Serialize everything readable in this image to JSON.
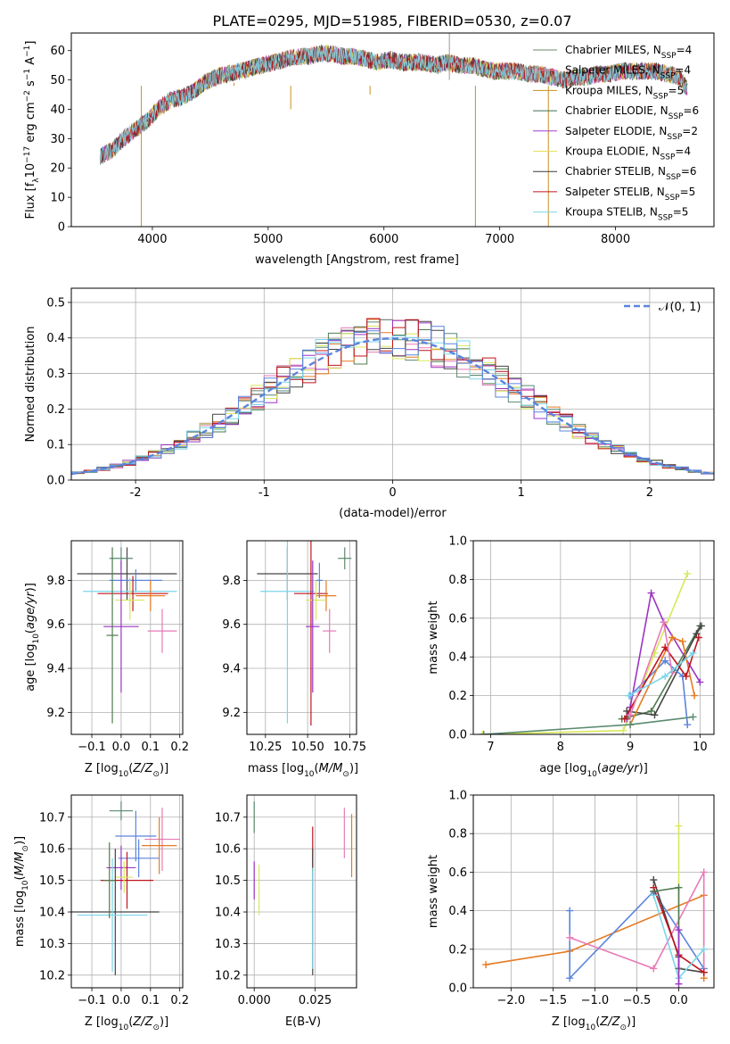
{
  "figure": {
    "title": "PLATE=0295, MJD=51985, FIBERID=0530, z=0.07"
  },
  "model_colors": [
    "#6a8a6a",
    "#e07ab8",
    "#c8901e",
    "#3f6f55",
    "#a43ad0",
    "#e8e05a",
    "#3a3a3a",
    "#c0141e",
    "#7fd6e8"
  ],
  "series_colors": [
    "#4f7b4f",
    "#e77ab8",
    "#e57b22",
    "#5a8a70",
    "#9b34c4",
    "#d8e85a",
    "#444444",
    "#c0141e",
    "#7ad6ea",
    "#5b84dd"
  ],
  "chart_data": [
    {
      "id": "spectrum",
      "type": "line",
      "title": "PLATE=0295, MJD=51985, FIBERID=0530, z=0.07",
      "xlabel": "wavelength [Angstrom, rest frame]",
      "ylabel": "Flux [f_λ10^-17 erg cm^-2 s^-1 A^-1]",
      "xlim": [
        3300,
        8850
      ],
      "ylim": [
        0,
        66
      ],
      "xticks": [
        4000,
        5000,
        6000,
        7000,
        8000
      ],
      "yticks": [
        0,
        10,
        20,
        30,
        40,
        50,
        60
      ],
      "grid": false,
      "legend_position": "top-right",
      "legend": [
        "Chabrier MILES, N_SSP=4",
        "Salpeter MILES, N_SSP=4",
        "Kroupa MILES, N_SSP=5",
        "Chabrier ELODIE, N_SSP=6",
        "Salpeter ELODIE, N_SSP=2",
        "Kroupa ELODIE, N_SSP=4",
        "Chabrier STELIB, N_SSP=6",
        "Salpeter STELIB, N_SSP=5",
        "Kroupa STELIB, N_SSP=5"
      ],
      "x": [
        3550,
        3650,
        3750,
        3850,
        3950,
        4050,
        4150,
        4250,
        4350,
        4450,
        4550,
        4650,
        4750,
        4850,
        4950,
        5050,
        5150,
        5250,
        5350,
        5450,
        5550,
        5650,
        5750,
        5850,
        5950,
        6050,
        6150,
        6250,
        6350,
        6450,
        6550,
        6650,
        6750,
        6850,
        6950,
        7050,
        7150,
        7250,
        7350,
        7450,
        7550,
        7650,
        7750,
        7850,
        7950,
        8050,
        8150,
        8250,
        8350,
        8450,
        8550,
        8650
      ],
      "y": [
        24,
        26,
        30,
        33,
        36,
        40,
        43,
        44,
        46,
        49,
        51,
        52,
        53,
        54,
        55,
        56,
        57,
        58,
        58,
        59,
        59,
        58,
        58,
        57,
        56,
        57,
        56,
        56,
        56,
        55,
        56,
        55,
        55,
        54,
        53,
        53,
        53,
        52,
        52,
        51,
        50,
        51,
        51,
        52,
        52,
        53,
        53,
        53,
        53,
        52,
        51,
        45
      ]
    },
    {
      "id": "residuals",
      "type": "histogram",
      "xlabel": "(data-model)/error",
      "ylabel": "Normed distribution",
      "xlim": [
        -2.5,
        2.5
      ],
      "ylim": [
        0,
        0.54
      ],
      "xticks": [
        -2,
        -1,
        0,
        1,
        2
      ],
      "yticks": [
        0.0,
        0.1,
        0.2,
        0.3,
        0.4,
        0.5
      ],
      "grid": true,
      "legend_position": "top-right",
      "legend": [
        "N(0,1)"
      ],
      "bin_width": 0.1,
      "bin_start": -2.5,
      "gaussian": {
        "mean": 0,
        "sigma": 1
      }
    },
    {
      "id": "age_vs_Z",
      "type": "errorbar",
      "xlabel": "Z [log10(Z/Z⊙)]",
      "ylabel": "age  [log10(age/yr)]",
      "xlim": [
        -0.17,
        0.21
      ],
      "ylim": [
        9.1,
        9.98
      ],
      "xticks": [
        -0.1,
        0.0,
        0.1,
        0.2
      ],
      "xticklabels": [
        "−0.1",
        "0.0",
        "0.1",
        "0.2"
      ],
      "yticks": [
        9.2,
        9.4,
        9.6,
        9.8
      ],
      "grid": true,
      "points": [
        {
          "x": 0.02,
          "y": 9.83,
          "xerr": 0.17,
          "yerr": 0.12,
          "c": 6
        },
        {
          "x": 0.0,
          "y": 9.9,
          "xerr": 0.04,
          "yerr": 0.05,
          "c": 3
        },
        {
          "x": 0.05,
          "y": 9.8,
          "xerr": 0.09,
          "yerr": 0.05,
          "c": 9
        },
        {
          "x": 0.03,
          "y": 9.75,
          "xerr": 0.16,
          "yerr": 0.06,
          "c": 8
        },
        {
          "x": 0.04,
          "y": 9.74,
          "xerr": 0.12,
          "yerr": 0.08,
          "c": 7
        },
        {
          "x": 0.1,
          "y": 9.73,
          "xerr": 0.05,
          "yerr": 0.07,
          "c": 2
        },
        {
          "x": 0.03,
          "y": 9.71,
          "xerr": 0.05,
          "yerr": 0.09,
          "c": 5
        },
        {
          "x": 0.0,
          "y": 9.59,
          "xerr": 0.06,
          "yerr": 0.3,
          "c": 4
        },
        {
          "x": 0.14,
          "y": 9.57,
          "xerr": 0.05,
          "yerr": 0.1,
          "c": 1
        },
        {
          "x": -0.03,
          "y": 9.55,
          "xerr": 0.02,
          "yerr": 0.4,
          "c": 0
        }
      ]
    },
    {
      "id": "age_vs_mass",
      "type": "errorbar",
      "xlabel": "mass [log10(M/M⊙)]",
      "ylabel": "",
      "xlim": [
        10.14,
        10.79
      ],
      "ylim": [
        9.1,
        9.98
      ],
      "xticks": [
        10.25,
        10.5,
        10.75
      ],
      "xticklabels": [
        "10.25",
        "10.50",
        "10.75"
      ],
      "yticks": [
        9.2,
        9.4,
        9.6,
        9.8
      ],
      "grid": true,
      "points": [
        {
          "x": 10.38,
          "y": 9.83,
          "xerr": 0.18,
          "yerr": 0.12,
          "c": 6
        },
        {
          "x": 10.72,
          "y": 9.9,
          "xerr": 0.04,
          "yerr": 0.05,
          "c": 3
        },
        {
          "x": 10.38,
          "y": 9.75,
          "xerr": 0.16,
          "yerr": 0.6,
          "c": 8
        },
        {
          "x": 10.52,
          "y": 9.74,
          "xerr": 0.1,
          "yerr": 0.6,
          "c": 7
        },
        {
          "x": 10.61,
          "y": 9.73,
          "xerr": 0.06,
          "yerr": 0.07,
          "c": 2
        },
        {
          "x": 10.55,
          "y": 9.71,
          "xerr": 0.06,
          "yerr": 0.09,
          "c": 5
        },
        {
          "x": 10.53,
          "y": 9.59,
          "xerr": 0.04,
          "yerr": 0.3,
          "c": 4
        },
        {
          "x": 10.63,
          "y": 9.57,
          "xerr": 0.04,
          "yerr": 0.1,
          "c": 1
        },
        {
          "x": 10.57,
          "y": 9.8,
          "xerr": 0.02,
          "yerr": 0.08,
          "c": 9
        }
      ]
    },
    {
      "id": "weight_vs_age",
      "type": "line",
      "xlabel": "age  [log10(age/yr)]",
      "ylabel": "mass weight",
      "xlim": [
        6.75,
        10.2
      ],
      "ylim": [
        0,
        1.0
      ],
      "xticks": [
        7,
        8,
        9,
        10
      ],
      "yticks": [
        0.0,
        0.2,
        0.4,
        0.6,
        0.8,
        1.0
      ],
      "grid": true,
      "series": [
        {
          "c": 5,
          "x": [
            6.88,
            8.9,
            9.0,
            9.35,
            9.82
          ],
          "y": [
            0.0,
            0.02,
            0.1,
            0.42,
            0.83
          ]
        },
        {
          "c": 4,
          "x": [
            8.95,
            9.0,
            9.3,
            9.48,
            10.0
          ],
          "y": [
            0.08,
            0.14,
            0.73,
            0.58,
            0.27
          ]
        },
        {
          "c": 0,
          "x": [
            8.88,
            9.3,
            10.0
          ],
          "y": [
            0.08,
            0.12,
            0.56
          ]
        },
        {
          "c": 6,
          "x": [
            8.95,
            9.35,
            9.95,
            10.02
          ],
          "y": [
            0.12,
            0.1,
            0.52,
            0.56
          ]
        },
        {
          "c": 9,
          "x": [
            9.0,
            9.5,
            9.75,
            9.82
          ],
          "y": [
            0.2,
            0.38,
            0.3,
            0.05
          ]
        },
        {
          "c": 2,
          "x": [
            9.0,
            9.6,
            9.75,
            9.92
          ],
          "y": [
            0.05,
            0.5,
            0.48,
            0.2
          ]
        },
        {
          "c": 7,
          "x": [
            8.92,
            9.5,
            9.8,
            9.98
          ],
          "y": [
            0.08,
            0.45,
            0.3,
            0.5
          ]
        },
        {
          "c": 1,
          "x": [
            9.0,
            9.48,
            9.6
          ],
          "y": [
            0.1,
            0.58,
            0.32
          ]
        },
        {
          "c": 8,
          "x": [
            8.98,
            9.5,
            9.9
          ],
          "y": [
            0.2,
            0.3,
            0.42
          ]
        },
        {
          "c": 3,
          "x": [
            6.9,
            9.0,
            9.9
          ],
          "y": [
            0.0,
            0.05,
            0.09
          ]
        }
      ]
    },
    {
      "id": "mass_vs_Z",
      "type": "errorbar",
      "xlabel": "Z [log10(Z/Z⊙)]",
      "ylabel": "mass [log10(M/M⊙)]",
      "xlim": [
        -0.17,
        0.21
      ],
      "ylim": [
        10.16,
        10.77
      ],
      "xticks": [
        -0.1,
        0.0,
        0.1,
        0.2
      ],
      "xticklabels": [
        "−0.1",
        "0.0",
        "0.1",
        "0.2"
      ],
      "yticks": [
        10.2,
        10.3,
        10.4,
        10.5,
        10.6,
        10.7
      ],
      "grid": true,
      "points": [
        {
          "x": 0.0,
          "y": 10.72,
          "xerr": 0.04,
          "yerr": 0.03,
          "c": 3
        },
        {
          "x": 0.05,
          "y": 10.64,
          "xerr": 0.07,
          "yerr": 0.08,
          "c": 9
        },
        {
          "x": 0.14,
          "y": 10.63,
          "xerr": 0.06,
          "yerr": 0.1,
          "c": 1
        },
        {
          "x": 0.13,
          "y": 10.61,
          "xerr": 0.06,
          "yerr": 0.09,
          "c": 2
        },
        {
          "x": 0.06,
          "y": 10.57,
          "xerr": 0.07,
          "yerr": 0.06,
          "c": 9
        },
        {
          "x": 0.0,
          "y": 10.54,
          "xerr": 0.05,
          "yerr": 0.07,
          "c": 4
        },
        {
          "x": 0.02,
          "y": 10.5,
          "xerr": 0.09,
          "yerr": 0.09,
          "c": 7
        },
        {
          "x": 0.01,
          "y": 10.51,
          "xerr": 0.03,
          "yerr": 0.05,
          "c": 5
        },
        {
          "x": -0.02,
          "y": 10.4,
          "xerr": 0.15,
          "yerr": 0.2,
          "c": 6
        },
        {
          "x": -0.03,
          "y": 10.39,
          "xerr": 0.12,
          "yerr": 0.18,
          "c": 8
        },
        {
          "x": -0.04,
          "y": 10.5,
          "xerr": 0.02,
          "yerr": 0.12,
          "c": 0
        }
      ]
    },
    {
      "id": "mass_vs_ebv",
      "type": "errorbar",
      "xlabel": "E(B-V)",
      "ylabel": "",
      "xlim": [
        -0.003,
        0.042
      ],
      "ylim": [
        10.16,
        10.77
      ],
      "xticks": [
        0.0,
        0.025
      ],
      "xticklabels": [
        "0.000",
        "0.025"
      ],
      "yticks": [
        10.2,
        10.3,
        10.4,
        10.5,
        10.6,
        10.7
      ],
      "grid": true,
      "points": [
        {
          "x": 0.0,
          "y": 10.7,
          "xerr": 0,
          "yerr": 0.05,
          "c": 3
        },
        {
          "x": 0.0,
          "y": 10.5,
          "xerr": 0,
          "yerr": 0.06,
          "c": 4
        },
        {
          "x": 0.002,
          "y": 10.47,
          "xerr": 0,
          "yerr": 0.08,
          "c": 5
        },
        {
          "x": 0.024,
          "y": 10.6,
          "xerr": 0,
          "yerr": 0.07,
          "c": 7
        },
        {
          "x": 0.024,
          "y": 10.4,
          "xerr": 0,
          "yerr": 0.2,
          "c": 6
        },
        {
          "x": 0.024,
          "y": 10.38,
          "xerr": 0,
          "yerr": 0.16,
          "c": 8
        },
        {
          "x": 0.037,
          "y": 10.65,
          "xerr": 0,
          "yerr": 0.08,
          "c": 1
        },
        {
          "x": 0.04,
          "y": 10.61,
          "xerr": 0,
          "yerr": 0.1,
          "c": 2
        }
      ]
    },
    {
      "id": "weight_vs_Z",
      "type": "line",
      "xlabel": "Z [log10(Z/Z⊙)]",
      "ylabel": "mass weight",
      "xlim": [
        -2.45,
        0.42
      ],
      "ylim": [
        0,
        1.0
      ],
      "xticks": [
        -2.0,
        -1.5,
        -1.0,
        -0.5,
        0.0
      ],
      "xticklabels": [
        "−2.0",
        "−1.5",
        "−1.0",
        "−0.5",
        "0.0"
      ],
      "yticks": [
        0.0,
        0.2,
        0.4,
        0.6,
        0.8,
        1.0
      ],
      "grid": true,
      "series": [
        {
          "c": 2,
          "x": [
            -2.3,
            -1.3,
            0.3,
            0.3
          ],
          "y": [
            0.12,
            0.19,
            0.48,
            0.05
          ]
        },
        {
          "c": 9,
          "x": [
            -1.3,
            -1.3,
            -0.3,
            0.3
          ],
          "y": [
            0.4,
            0.05,
            0.5,
            0.1
          ]
        },
        {
          "c": 1,
          "x": [
            -1.3,
            -0.3,
            0.3,
            0.3
          ],
          "y": [
            0.26,
            0.1,
            0.6,
            0.08
          ]
        },
        {
          "c": 5,
          "x": [
            0.0,
            0.0,
            0.0
          ],
          "y": [
            0.84,
            0.2,
            0.05
          ]
        },
        {
          "c": 6,
          "x": [
            -0.3,
            0.0,
            0.0,
            0.3
          ],
          "y": [
            0.56,
            0.16,
            0.1,
            0.08
          ]
        },
        {
          "c": 7,
          "x": [
            -0.3,
            0.0,
            0.3
          ],
          "y": [
            0.52,
            0.17,
            0.08
          ]
        },
        {
          "c": 8,
          "x": [
            -0.3,
            0.0,
            0.3
          ],
          "y": [
            0.48,
            0.05,
            0.2
          ]
        },
        {
          "c": 0,
          "x": [
            -0.3,
            0.0,
            0.0
          ],
          "y": [
            0.5,
            0.52,
            0.1
          ]
        },
        {
          "c": 4,
          "x": [
            0.0,
            0.0
          ],
          "y": [
            0.3,
            0.02
          ]
        }
      ]
    }
  ]
}
